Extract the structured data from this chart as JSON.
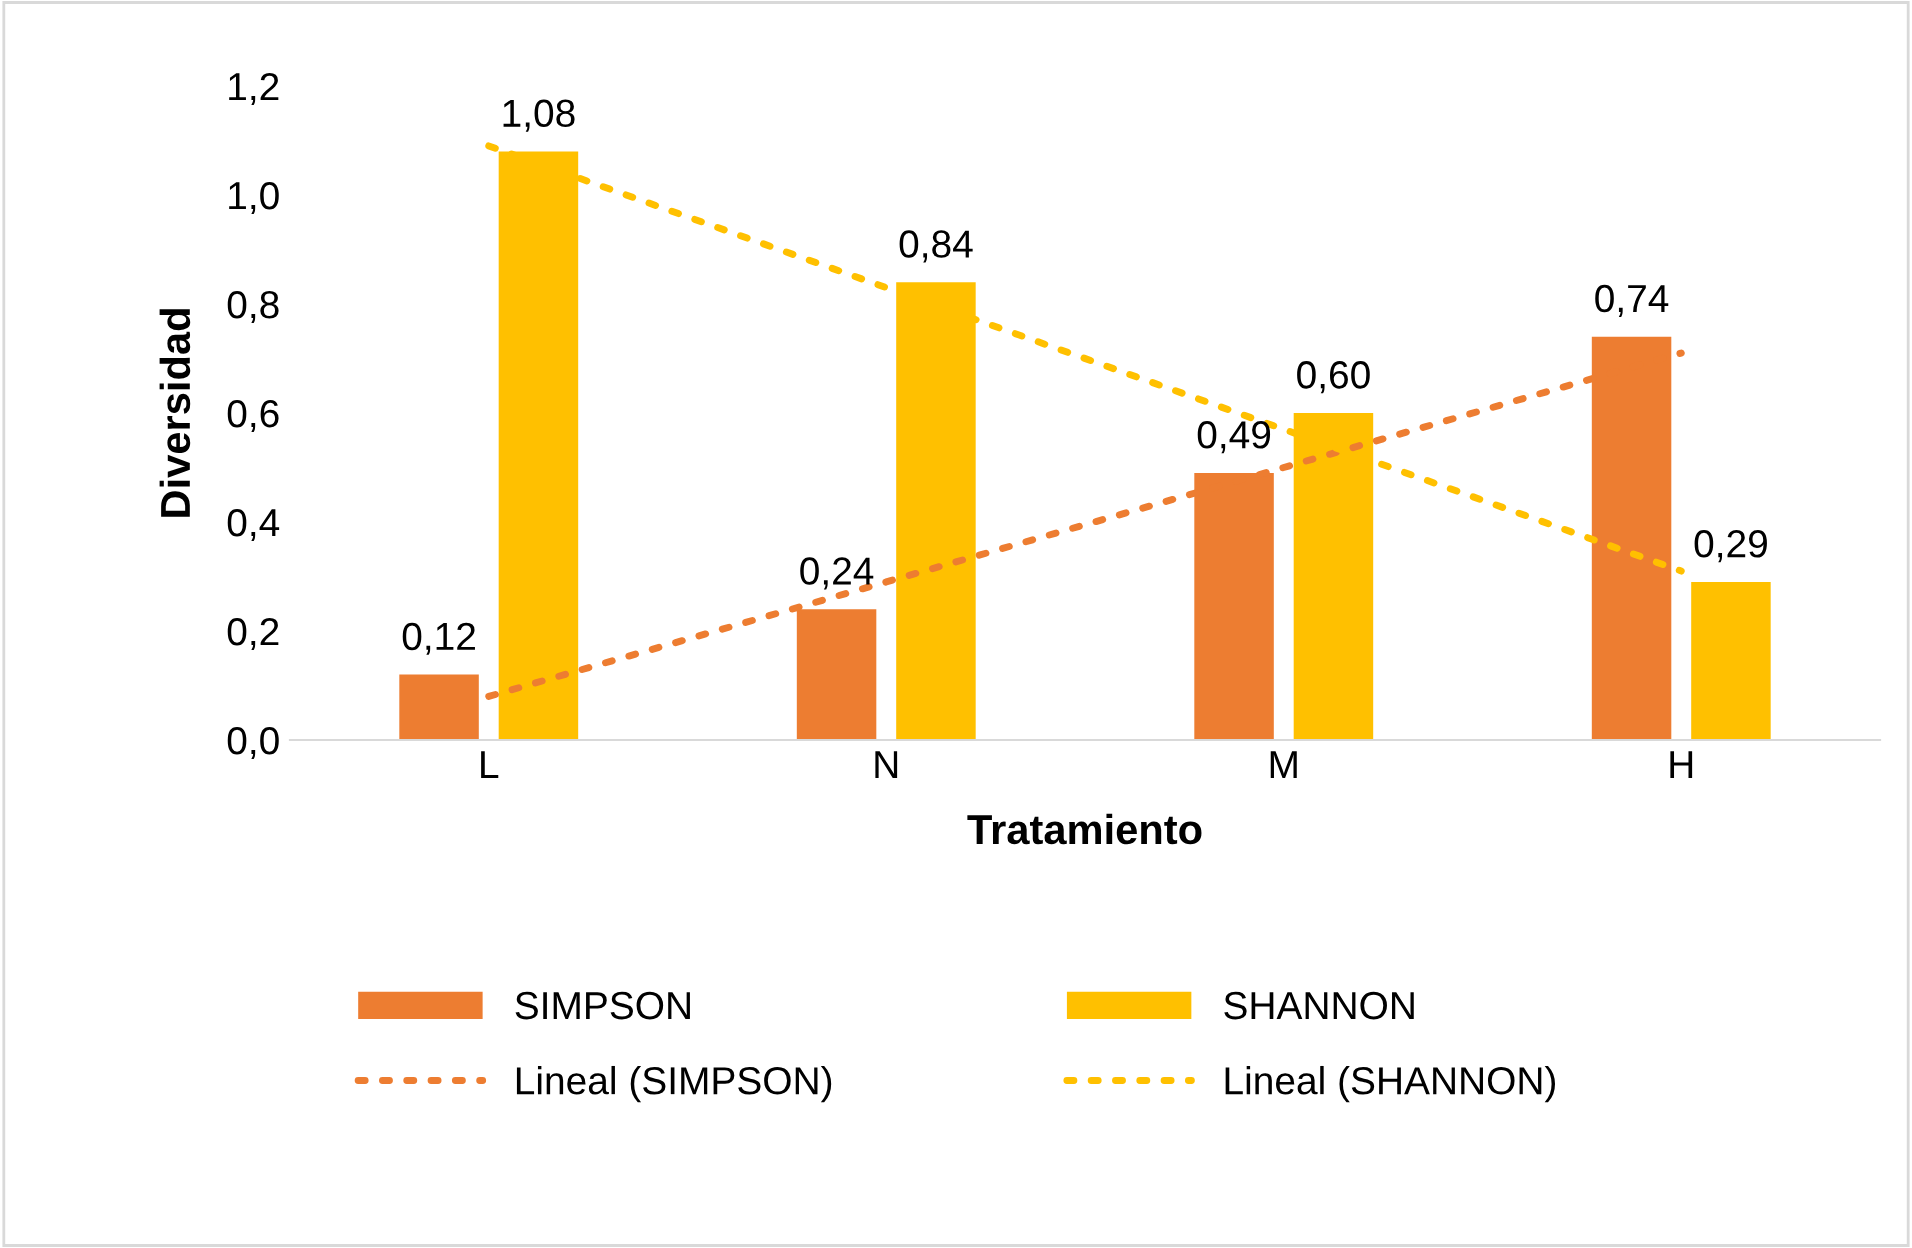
{
  "chart_data": {
    "type": "bar",
    "xlabel": "Tratamiento",
    "ylabel": "Diversidad",
    "categories": [
      "L",
      "N",
      "M",
      "H"
    ],
    "series": [
      {
        "name": "SIMPSON",
        "color": "#ed7d31",
        "values": [
          0.12,
          0.24,
          0.49,
          0.74
        ],
        "value_labels": [
          "0,12",
          "0,24",
          "0,49",
          "0,74"
        ]
      },
      {
        "name": "SHANNON",
        "color": "#ffc000",
        "values": [
          1.08,
          0.84,
          0.6,
          0.29
        ],
        "value_labels": [
          "1,08",
          "0,84",
          "0,60",
          "0,29"
        ]
      },
      {
        "name": "Lineal (SIMPSON)",
        "type": "line",
        "line_style": "dotted",
        "color": "#ed7d31",
        "values": [
          0.08,
          0.29,
          0.5,
          0.71
        ]
      },
      {
        "name": "Lineal (SHANNON)",
        "type": "line",
        "line_style": "dotted",
        "color": "#ffc000",
        "values": [
          1.09,
          0.83,
          0.57,
          0.31
        ]
      }
    ],
    "ylim": [
      0,
      1.2
    ],
    "yticks": [
      {
        "value": 0,
        "label": "0,0"
      },
      {
        "value": 0.2,
        "label": "0,2"
      },
      {
        "value": 0.4,
        "label": "0,4"
      },
      {
        "value": 0.6,
        "label": "0,6"
      },
      {
        "value": 0.8,
        "label": "0,8"
      },
      {
        "value": 1.0,
        "label": "1,0"
      },
      {
        "value": 1.2,
        "label": "1,2"
      }
    ],
    "legend": "bottom"
  }
}
